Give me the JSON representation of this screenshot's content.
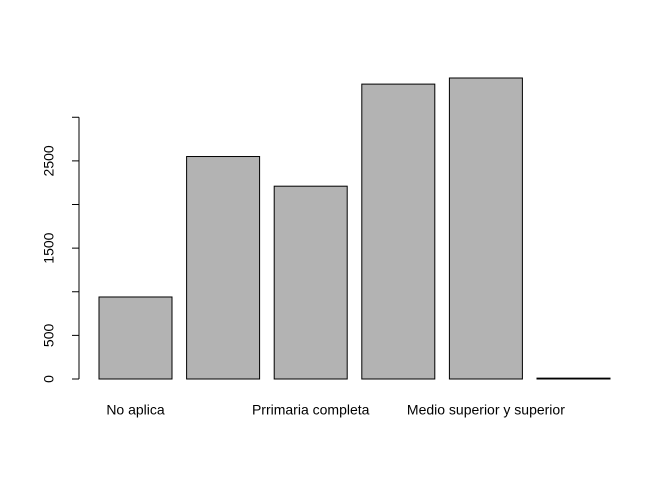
{
  "chart_data": {
    "type": "bar",
    "categories": [
      "No aplica",
      null,
      "Prrimaria completa",
      null,
      "Medio superior y superior",
      null
    ],
    "values": [
      940,
      2550,
      2210,
      3380,
      3450,
      10
    ],
    "color": "#b3b3b3",
    "ylim": [
      0,
      3450
    ],
    "yticks": [
      0,
      500,
      {
        "value": 1000,
        "label": null
      },
      1500,
      {
        "value": 2000,
        "label": null
      },
      2500,
      {
        "value": 3000,
        "label": null
      }
    ]
  }
}
